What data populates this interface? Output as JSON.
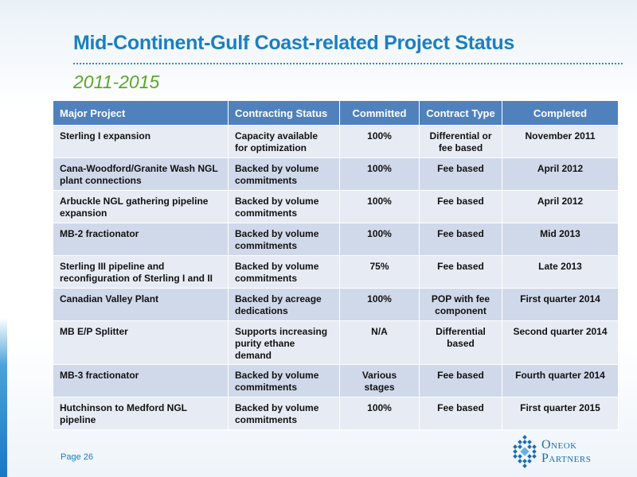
{
  "slide": {
    "title": "Mid-Continent-Gulf Coast-related Project Status",
    "subtitle": "2011-2015",
    "page_label": "Page 26"
  },
  "table": {
    "headers": [
      "Major Project",
      "Contracting Status",
      "Committed",
      "Contract Type",
      "Completed"
    ],
    "rows": [
      [
        "Sterling I expansion",
        "Capacity available for optimization",
        "100%",
        "Differential or fee based",
        "November 2011"
      ],
      [
        "Cana-Woodford/Granite Wash NGL plant connections",
        "Backed by volume commitments",
        "100%",
        "Fee based",
        "April 2012"
      ],
      [
        "Arbuckle NGL gathering pipeline expansion",
        "Backed by volume commitments",
        "100%",
        "Fee based",
        "April 2012"
      ],
      [
        "MB-2 fractionator",
        "Backed by volume commitments",
        "100%",
        "Fee based",
        "Mid 2013"
      ],
      [
        "Sterling III pipeline and reconfiguration of Sterling I and II",
        "Backed by volume commitments",
        "75%",
        "Fee based",
        "Late 2013"
      ],
      [
        "Canadian Valley Plant",
        "Backed by acreage dedications",
        "100%",
        "POP with fee component",
        "First quarter 2014"
      ],
      [
        "MB E/P Splitter",
        "Supports increasing purity ethane demand",
        "N/A",
        "Differential based",
        "Second quarter 2014"
      ],
      [
        "MB-3 fractionator",
        "Backed by volume commitments",
        "Various stages",
        "Fee based",
        "Fourth quarter 2014"
      ],
      [
        "Hutchinson to Medford NGL pipeline",
        "Backed by volume commitments",
        "100%",
        "Fee based",
        "First quarter 2015"
      ]
    ]
  },
  "logo": {
    "line1": "Oneok",
    "line2": "Partners",
    "icon": "oneok-diamond-logo-icon"
  },
  "colors": {
    "title": "#1b7fc1",
    "subtitle": "#5aa62c",
    "header_bg": "#4f81bd",
    "row_light": "#e7ebf4",
    "row_dark": "#d0d9ea"
  }
}
